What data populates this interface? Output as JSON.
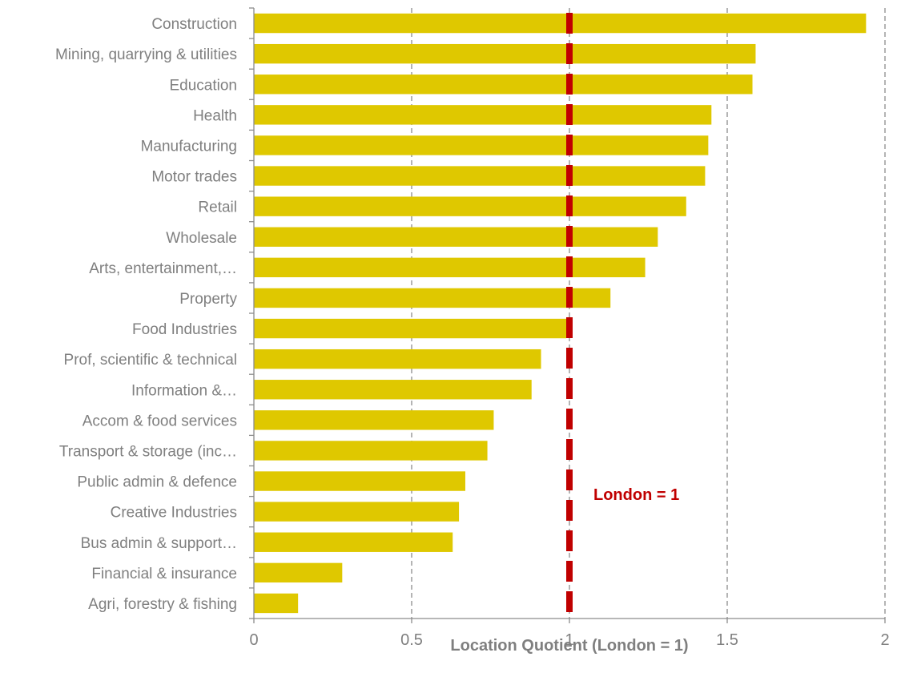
{
  "chart_data": {
    "type": "bar",
    "orientation": "horizontal",
    "categories": [
      "Construction",
      "Mining, quarrying & utilities",
      "Education",
      "Health",
      "Manufacturing",
      "Motor trades",
      "Retail",
      "Wholesale",
      "Arts, entertainment,…",
      "Property",
      "Food Industries",
      "Prof, scientific & technical",
      "Information &…",
      "Accom & food services",
      "Transport & storage (inc…",
      "Public admin & defence",
      "Creative Industries",
      "Bus admin & support…",
      "Financial & insurance",
      "Agri, forestry & fishing"
    ],
    "values": [
      1.94,
      1.59,
      1.58,
      1.45,
      1.44,
      1.43,
      1.37,
      1.28,
      1.24,
      1.13,
      0.99,
      0.91,
      0.88,
      0.76,
      0.74,
      0.67,
      0.65,
      0.63,
      0.28,
      0.14
    ],
    "xlabel": "Location Quotient (London = 1)",
    "xlim": [
      0,
      2
    ],
    "xticks": [
      0,
      0.5,
      1,
      1.5,
      2
    ],
    "xtick_labels": [
      "0",
      "0.5",
      "1",
      "1.5",
      "2"
    ],
    "grid": "vertical dashed",
    "reference_line": {
      "value": 1,
      "style": "dashed",
      "color": "#c00000"
    },
    "annotation": {
      "text": "London = 1",
      "color": "#c00000"
    },
    "bar_color": "#dfc800",
    "legend": "none"
  }
}
